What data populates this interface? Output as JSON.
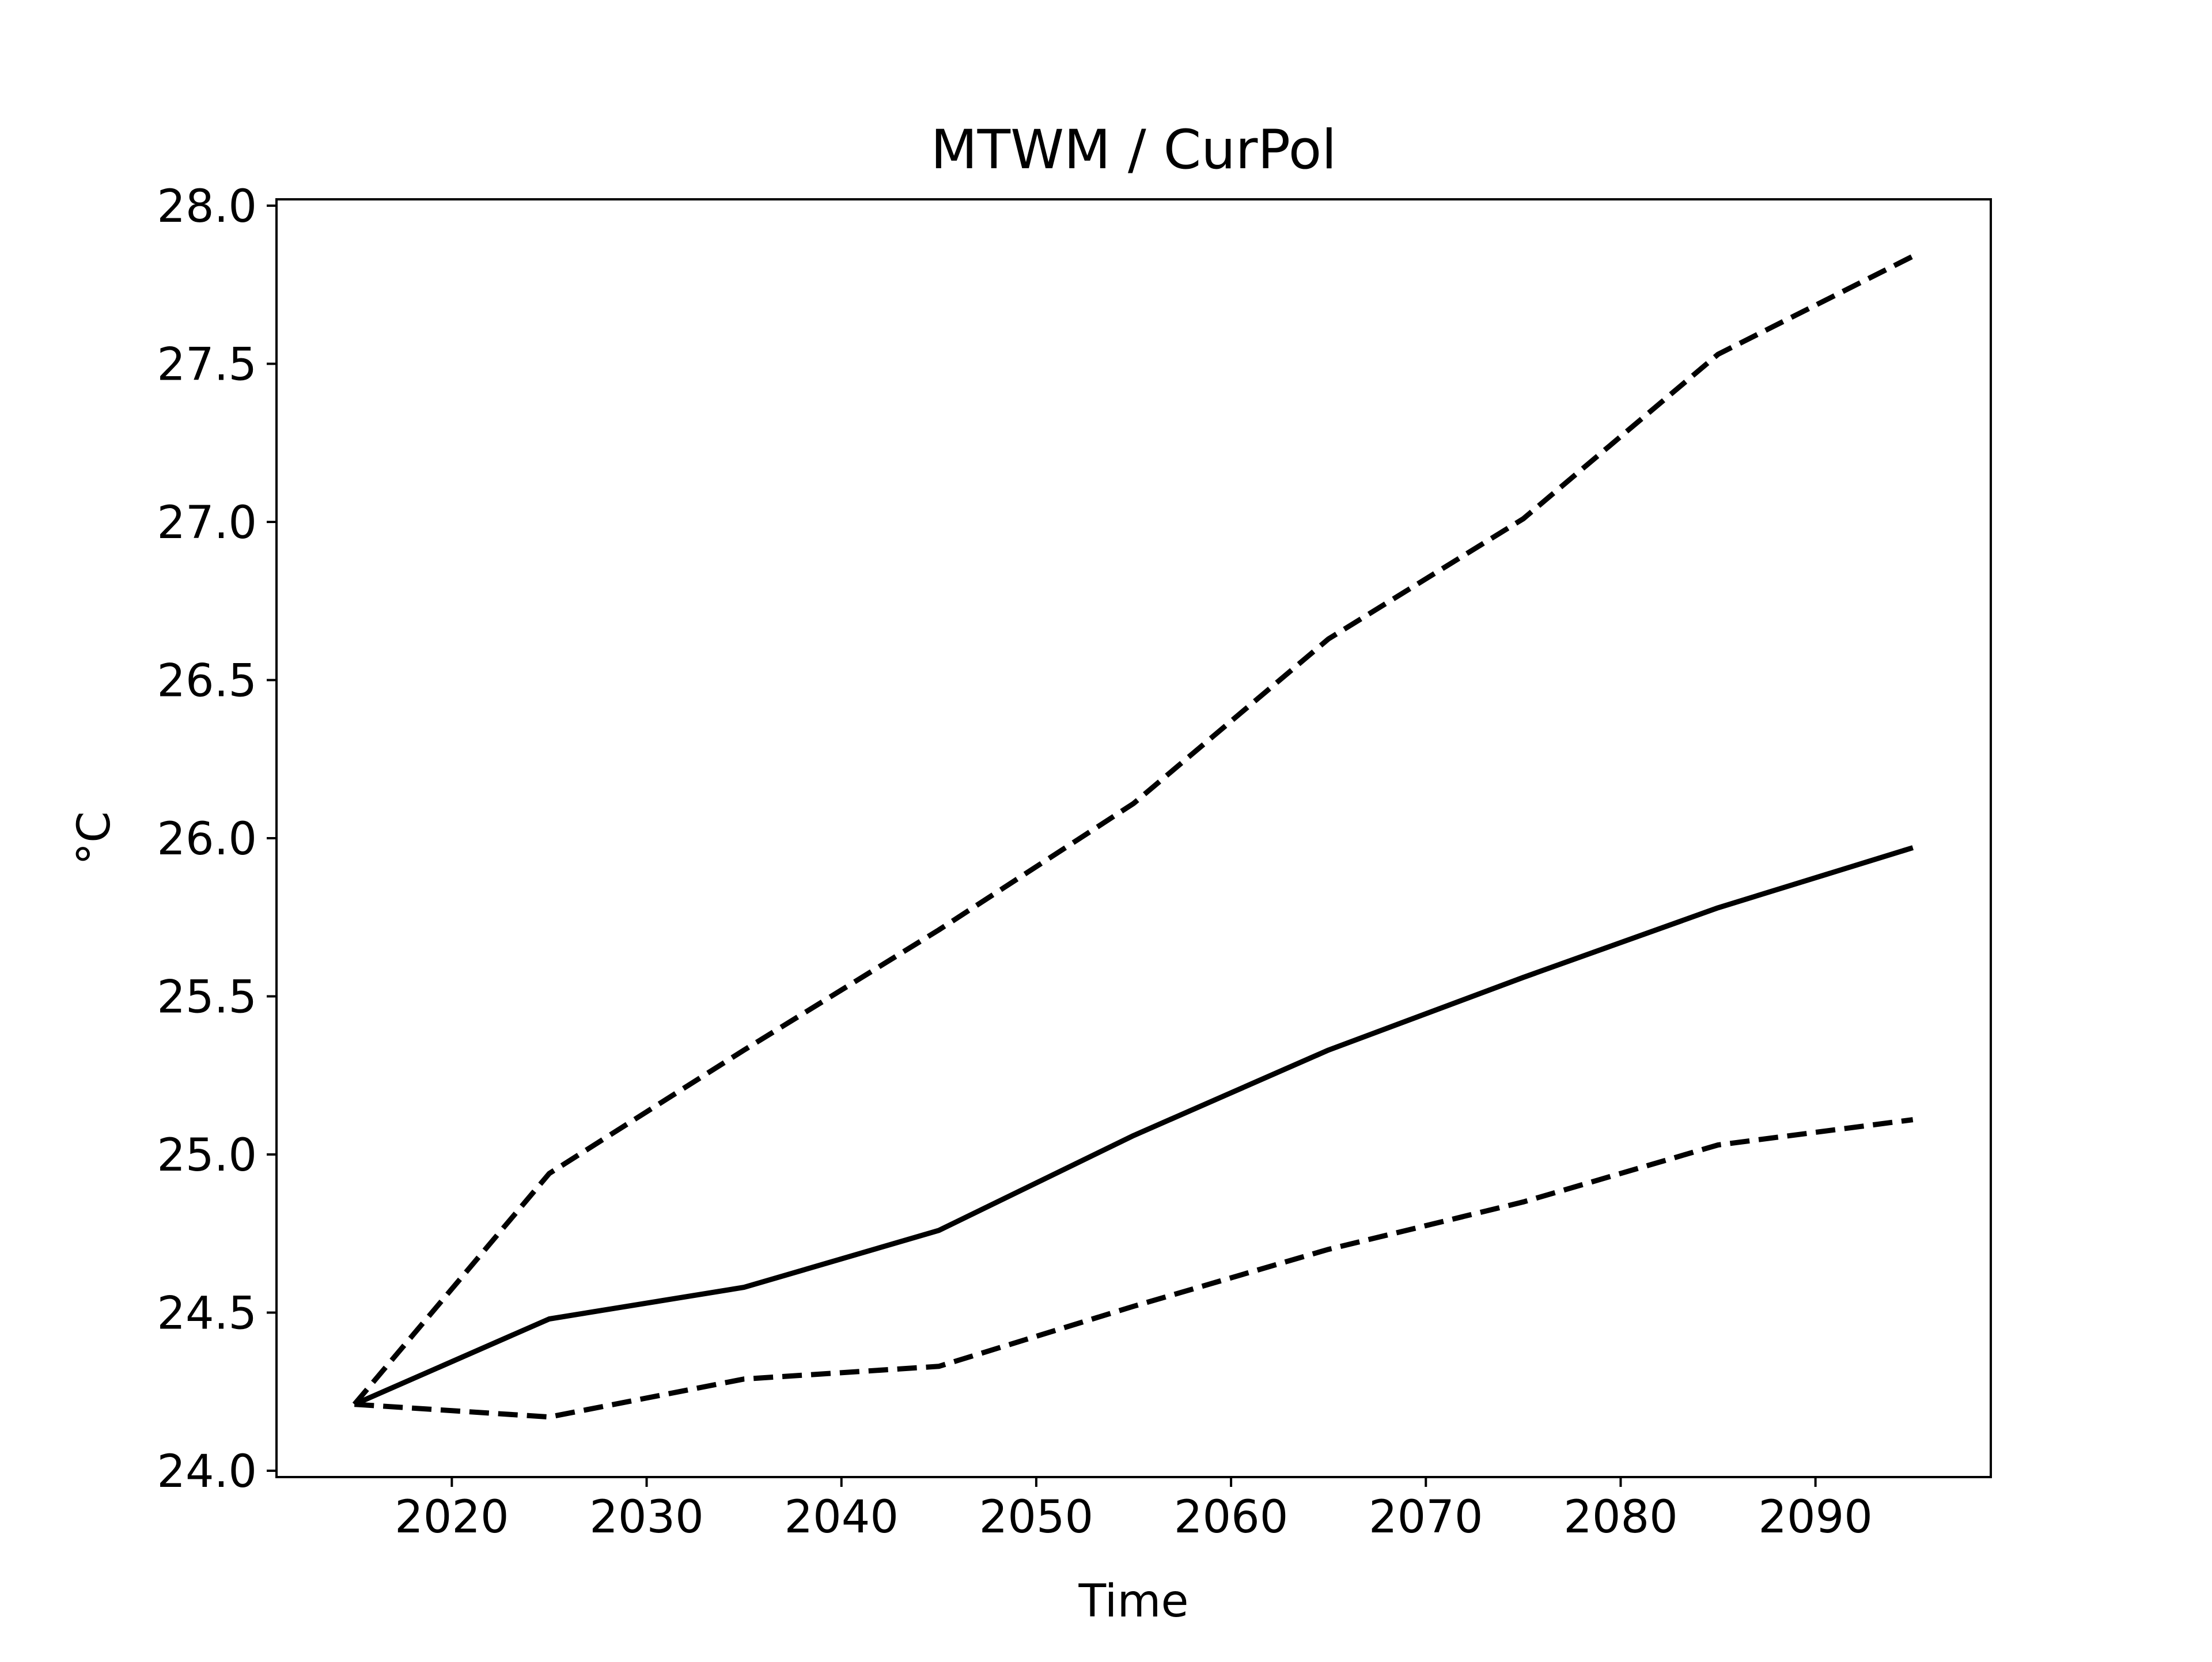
{
  "chart_data": {
    "type": "line",
    "title": "MTWM / CurPol",
    "xlabel": "Time",
    "ylabel": "°C",
    "x": [
      2015,
      2025,
      2035,
      2045,
      2055,
      2065,
      2075,
      2085,
      2095
    ],
    "series": [
      {
        "style": "solid",
        "values": [
          24.21,
          24.48,
          24.58,
          24.76,
          25.06,
          25.33,
          25.56,
          25.78,
          25.97
        ]
      },
      {
        "style": "dashed",
        "values": [
          24.21,
          24.94,
          25.33,
          25.71,
          26.11,
          26.63,
          27.01,
          27.53,
          27.84
        ]
      },
      {
        "style": "dashed",
        "values": [
          24.21,
          24.17,
          24.29,
          24.33,
          24.52,
          24.7,
          24.85,
          25.03,
          25.11
        ]
      }
    ],
    "xlim": [
      2011,
      2099
    ],
    "ylim": [
      23.98,
      28.02
    ],
    "xticks": [
      "2020",
      "2030",
      "2040",
      "2050",
      "2060",
      "2070",
      "2080",
      "2090"
    ],
    "yticks": [
      "24.0",
      "24.5",
      "25.0",
      "25.5",
      "26.0",
      "26.5",
      "27.0",
      "27.5",
      "28.0"
    ],
    "grid": false,
    "legend": "none",
    "colors": {
      "line": "#000000",
      "axes": "#000000",
      "background": "#ffffff"
    }
  }
}
